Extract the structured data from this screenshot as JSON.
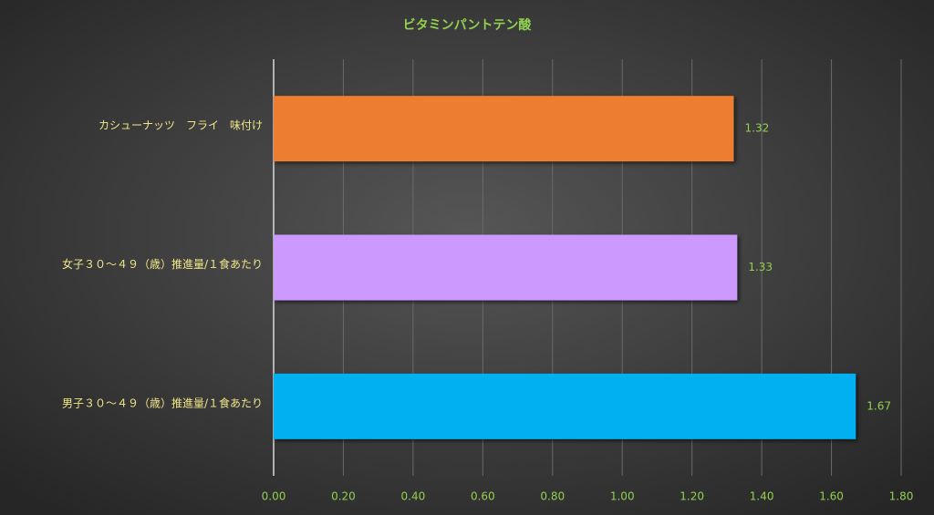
{
  "chart_data": {
    "type": "bar",
    "orientation": "horizontal",
    "title": "ビタミンパントテン酸",
    "categories": [
      "カシューナッツ　フライ　味付け",
      "女子３０～４９（歳）推進量/１食あたり",
      "男子３０～４９（歳）推進量/１食あたり"
    ],
    "values": [
      1.32,
      1.33,
      1.67
    ],
    "colors": [
      "#ed7d31",
      "#cc99ff",
      "#00b0f0"
    ],
    "xlim": [
      0,
      1.8
    ],
    "xticks": [
      {
        "value": 0,
        "label": "0.00"
      },
      {
        "value": 0.2,
        "label": "0.20"
      },
      {
        "value": 0.4,
        "label": "0.40"
      },
      {
        "value": 0.6,
        "label": "0.60"
      },
      {
        "value": 0.8,
        "label": "0.80"
      },
      {
        "value": 1,
        "label": "1.00"
      },
      {
        "value": 1.2,
        "label": "1.20"
      },
      {
        "value": 1.4,
        "label": "1.40"
      },
      {
        "value": 1.6,
        "label": "1.60"
      },
      {
        "value": 1.8,
        "label": "1.80"
      }
    ],
    "grid": true
  }
}
